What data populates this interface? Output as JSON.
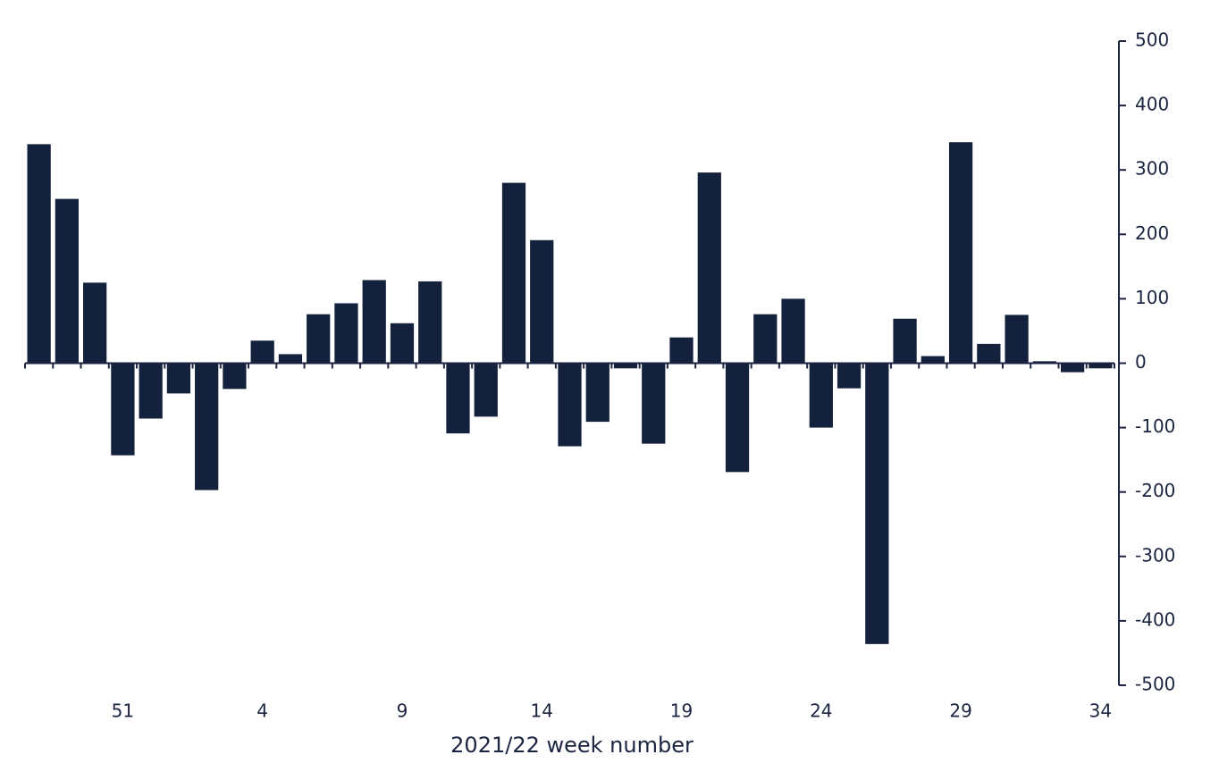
{
  "chart_data": {
    "type": "bar",
    "x_label": "2021/22 week number",
    "categories": [
      null,
      null,
      null,
      "51",
      null,
      null,
      null,
      null,
      "4",
      null,
      null,
      null,
      null,
      "9",
      null,
      null,
      null,
      null,
      "14",
      null,
      null,
      null,
      null,
      "19",
      null,
      null,
      null,
      null,
      "24",
      null,
      null,
      null,
      null,
      "29",
      null,
      null,
      null,
      null,
      "34"
    ],
    "values": [
      340,
      255,
      125,
      -143,
      -86,
      -47,
      -197,
      -40,
      35,
      14,
      76,
      93,
      129,
      62,
      127,
      -109,
      -83,
      280,
      191,
      -129,
      -91,
      -8,
      -125,
      40,
      296,
      -169,
      76,
      100,
      -100,
      -39,
      -436,
      69,
      11,
      343,
      30,
      75,
      3,
      -14,
      -8
    ],
    "color": "#14213d",
    "ylim": [
      -500,
      500
    ],
    "yticks": [
      -500,
      -400,
      -300,
      -200,
      -100,
      0,
      100,
      200,
      300,
      400,
      500
    ],
    "y_axis_side": "right"
  }
}
